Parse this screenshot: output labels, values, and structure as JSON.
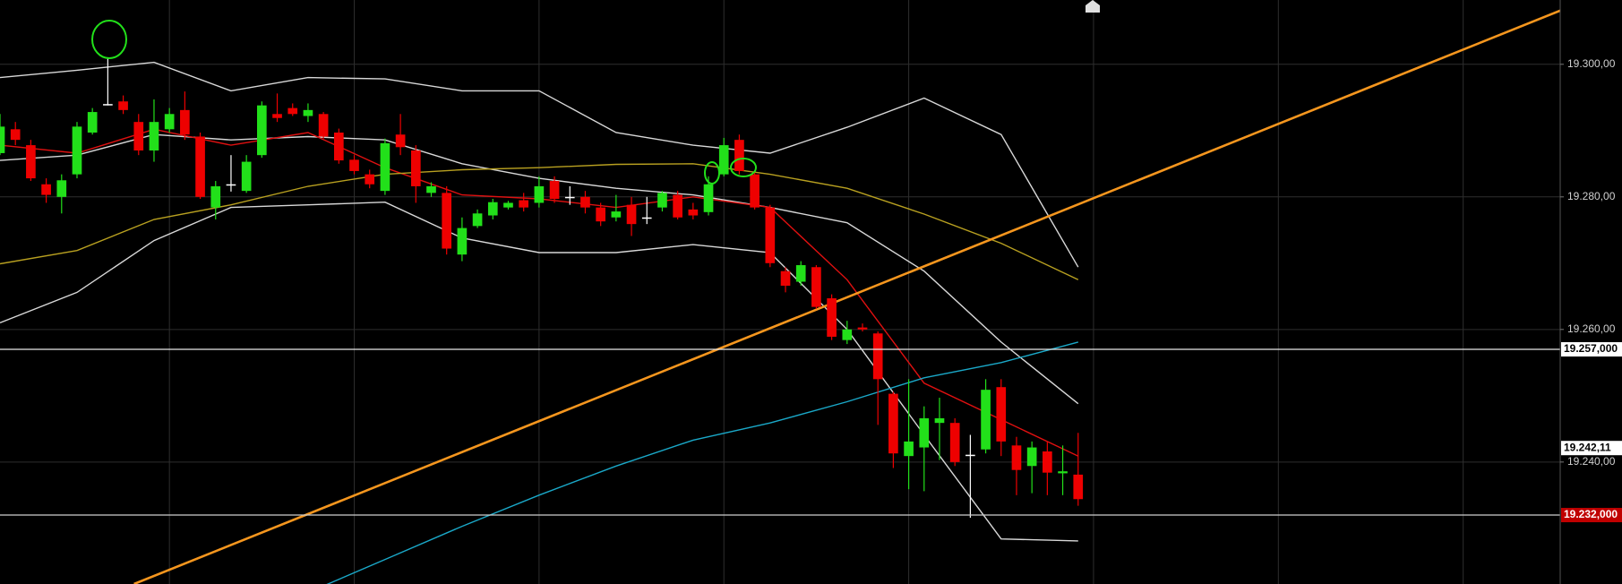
{
  "chart_data": {
    "type": "candlestick",
    "xlim": [
      0,
      101.3
    ],
    "xticks": [
      11,
      23,
      35,
      47,
      59,
      71,
      83,
      95
    ],
    "ylim": [
      19221.6,
      19309.7
    ],
    "yticks": [
      {
        "value": 19300,
        "label": "19.300,00"
      },
      {
        "value": 19280,
        "label": "19.280,00"
      },
      {
        "value": 19260,
        "label": "19.260,00"
      },
      {
        "value": 19240,
        "label": "19.240,00"
      }
    ],
    "grid": true,
    "up_color": "#22e01a",
    "down_color": "#ee0000",
    "doji_color": "#ffffff",
    "open": [
      19286.6,
      19290.2,
      19287.8,
      19281.9,
      19280.0,
      19283.4,
      19289.7,
      19294.0,
      19294.4,
      19291.3,
      19287.0,
      19290.2,
      19293.1,
      19289.1,
      19278.4,
      19281.9,
      19280.9,
      19286.3,
      19292.5,
      19293.4,
      19292.2,
      19292.5,
      19289.7,
      19285.6,
      19283.4,
      19280.9,
      19289.4,
      19287.0,
      19280.6,
      19280.6,
      19271.3,
      19275.6,
      19277.2,
      19278.4,
      19279.5,
      19279.1,
      19282.4,
      19280.0,
      19280.0,
      19278.4,
      19276.9,
      19278.8,
      19276.9,
      19278.4,
      19280.3,
      19278.1,
      19277.7,
      19283.4,
      19288.6,
      19283.4,
      19278.4,
      19268.8,
      19267.2,
      19269.4,
      19264.7,
      19258.4,
      19260.3,
      19259.4,
      19250.3,
      19240.9,
      19242.2,
      19245.9,
      19245.9,
      19241.1,
      19241.9,
      19251.3,
      19242.5,
      19239.4,
      19241.6,
      19238.3,
      19238.1
    ],
    "high": [
      19292.5,
      19291.3,
      19288.6,
      19282.8,
      19283.4,
      19291.3,
      19293.4,
      19301.0,
      19295.3,
      19292.5,
      19294.7,
      19293.4,
      19295.9,
      19289.7,
      19282.4,
      19286.3,
      19286.3,
      19294.4,
      19295.6,
      19294.1,
      19294.1,
      19292.8,
      19290.3,
      19286.3,
      19284.1,
      19288.8,
      19292.5,
      19287.8,
      19282.2,
      19281.6,
      19276.9,
      19278.1,
      19279.7,
      19279.4,
      19280.6,
      19283.1,
      19283.1,
      19281.6,
      19280.9,
      19279.1,
      19280.3,
      19280.0,
      19280.0,
      19280.9,
      19280.9,
      19279.1,
      19283.1,
      19288.9,
      19289.4,
      19283.9,
      19278.8,
      19269.4,
      19270.3,
      19269.7,
      19265.3,
      19261.3,
      19260.9,
      19259.7,
      19250.6,
      19252.5,
      19248.4,
      19249.7,
      19246.6,
      19244.1,
      19252.5,
      19252.5,
      19243.8,
      19243.1,
      19243.1,
      19242.5,
      19244.4
    ],
    "low": [
      19286.3,
      19287.8,
      19282.4,
      19279.1,
      19277.5,
      19282.8,
      19289.4,
      19293.8,
      19292.5,
      19286.3,
      19285.3,
      19289.7,
      19288.6,
      19279.7,
      19276.6,
      19280.8,
      19280.6,
      19285.9,
      19291.3,
      19292.2,
      19291.3,
      19288.8,
      19285.0,
      19283.4,
      19281.3,
      19280.3,
      19286.3,
      19279.1,
      19280.0,
      19271.3,
      19270.3,
      19275.3,
      19276.6,
      19278.1,
      19277.8,
      19278.4,
      19279.1,
      19278.8,
      19277.5,
      19275.6,
      19276.3,
      19274.1,
      19275.9,
      19277.8,
      19276.6,
      19276.6,
      19277.2,
      19283.1,
      19283.4,
      19278.1,
      19269.4,
      19265.6,
      19266.6,
      19263.1,
      19258.4,
      19257.8,
      19259.7,
      19245.6,
      19239.1,
      19235.9,
      19235.6,
      19240.3,
      19239.4,
      19231.6,
      19241.3,
      19240.9,
      19235.0,
      19235.3,
      19235.0,
      19235.0,
      19233.4
    ],
    "close": [
      19290.6,
      19288.6,
      19282.8,
      19280.3,
      19282.5,
      19290.6,
      19292.8,
      19294.0,
      19293.1,
      19287.0,
      19291.3,
      19292.5,
      19289.4,
      19280.0,
      19281.6,
      19281.9,
      19285.3,
      19293.8,
      19291.9,
      19292.5,
      19293.1,
      19289.1,
      19285.5,
      19283.9,
      19281.9,
      19288.1,
      19287.5,
      19281.6,
      19281.6,
      19272.2,
      19275.3,
      19277.5,
      19279.2,
      19279.1,
      19278.4,
      19281.6,
      19279.7,
      19280.0,
      19278.4,
      19276.3,
      19277.8,
      19275.9,
      19276.9,
      19280.6,
      19276.9,
      19277.2,
      19281.9,
      19287.8,
      19283.9,
      19278.4,
      19270.0,
      19266.6,
      19269.7,
      19263.4,
      19258.9,
      19260.0,
      19260.0,
      19252.5,
      19241.3,
      19243.1,
      19246.6,
      19246.6,
      19240.0,
      19241.1,
      19250.9,
      19243.1,
      19238.8,
      19242.2,
      19238.4,
      19238.6,
      19234.4
    ],
    "lines": [
      {
        "color": "#d8d8d8",
        "x": [
          0,
          5,
          10,
          15,
          20,
          25,
          30,
          35,
          40,
          45,
          50,
          55,
          60,
          65,
          70
        ],
        "values": [
          19298.0,
          19299.1,
          19300.3,
          19296.0,
          19298.0,
          19297.8,
          19296.0,
          19296.0,
          19289.7,
          19287.8,
          19286.6,
          19290.5,
          19294.9,
          19289.4,
          19269.4
        ]
      },
      {
        "color": "#d8d8d8",
        "x": [
          0,
          5,
          10,
          15,
          20,
          25,
          30,
          35,
          40,
          45,
          50,
          55,
          60,
          65,
          70
        ],
        "values": [
          19285.5,
          19286.3,
          19289.4,
          19288.6,
          19289.1,
          19288.6,
          19285.0,
          19282.8,
          19281.3,
          19280.3,
          19278.4,
          19276.1,
          19268.8,
          19258.1,
          19248.8
        ]
      },
      {
        "color": "#d8d8d8",
        "x": [
          0,
          5,
          10,
          15,
          20,
          25,
          30,
          35,
          40,
          45,
          50,
          55,
          60,
          65,
          70
        ],
        "values": [
          19261.0,
          19265.6,
          19273.4,
          19278.4,
          19278.8,
          19279.2,
          19273.8,
          19271.6,
          19271.6,
          19272.8,
          19271.6,
          19260.0,
          19244.1,
          19228.4,
          19228.1
        ]
      },
      {
        "color": "#e01010",
        "x": [
          0,
          5,
          10,
          15,
          20,
          25,
          30,
          35,
          40,
          45,
          50,
          55,
          60,
          65,
          70
        ],
        "values": [
          19287.8,
          19286.6,
          19290.2,
          19287.8,
          19289.7,
          19284.4,
          19280.3,
          19279.7,
          19278.4,
          19280.0,
          19278.4,
          19267.5,
          19251.9,
          19246.4,
          19240.9
        ]
      },
      {
        "color": "#b8a020",
        "x": [
          0,
          5,
          10,
          15,
          20,
          25,
          30,
          35,
          40,
          45,
          50,
          55,
          60,
          65,
          70
        ],
        "values": [
          19269.9,
          19271.9,
          19276.6,
          19278.8,
          19281.6,
          19283.4,
          19284.1,
          19284.4,
          19284.9,
          19285.0,
          19283.4,
          19281.3,
          19277.4,
          19273.0,
          19267.5
        ]
      },
      {
        "color": "#1aa8c8",
        "x": [
          20,
          25,
          30,
          35,
          40,
          45,
          50,
          55,
          60,
          65,
          70
        ],
        "values": [
          19220.3,
          19225.3,
          19230.3,
          19235.0,
          19239.4,
          19243.3,
          19245.9,
          19249.1,
          19252.7,
          19255.0,
          19258.1
        ]
      },
      {
        "color": "#f5961e",
        "x": [
          8.7,
          101.3
        ],
        "values": [
          19221.6,
          19308.1
        ]
      }
    ],
    "hlines": [
      {
        "value": 19257,
        "label": "19.257,000",
        "color": "#e8e8e8",
        "box": "#ffffff",
        "text_color": "#000000"
      },
      {
        "value": 19232,
        "label": "19.232,000",
        "color": "#cfcfcf",
        "box": "#c00000",
        "text_color": "#ffffff"
      }
    ],
    "markers": [
      {
        "value": 19242.11,
        "label": "19.242,11",
        "box": "#ffffff",
        "text_color": "#000000"
      }
    ]
  }
}
